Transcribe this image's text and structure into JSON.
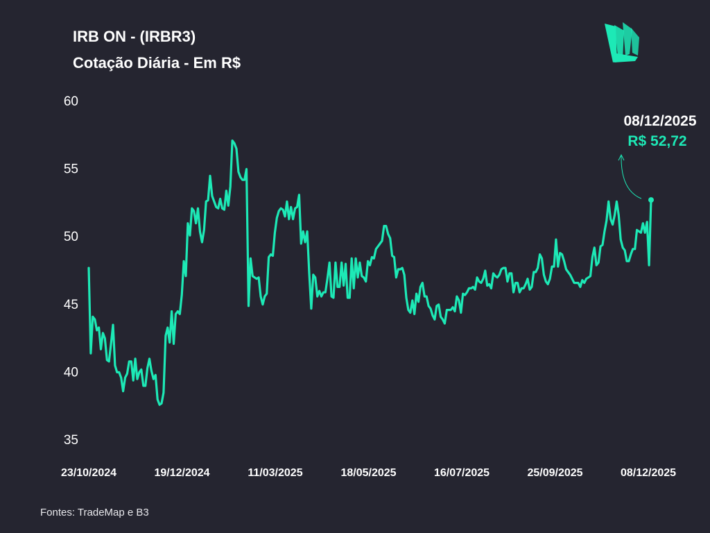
{
  "header": {
    "title_line1": "IRB ON - (IRBR3)",
    "title_line2": "Cotação Diária - Em R$"
  },
  "logo": {
    "icon": "leaf-logo-icon",
    "color": "#1de9b6"
  },
  "annotation": {
    "date": "08/12/2025",
    "price": "R$ 52,72"
  },
  "footer": {
    "source": "Fontes: TradeMap e B3"
  },
  "colors": {
    "background": "#252530",
    "line": "#1de9b6",
    "text": "#ffffff"
  },
  "chart_data": {
    "type": "line",
    "title": "Cotação Diária - Em R$",
    "xlabel": "",
    "ylabel": "",
    "ylim": [
      35,
      60
    ],
    "yticks": [
      "35",
      "40",
      "45",
      "50",
      "55",
      "60"
    ],
    "xticks": [
      "23/10/2024",
      "19/12/2024",
      "11/03/2025",
      "18/05/2025",
      "16/07/2025",
      "25/09/2025",
      "08/12/2025"
    ],
    "grid": false,
    "legend": "none",
    "series": [
      {
        "values": [
          47.7,
          41.4,
          44.1,
          43.9,
          43.1,
          43.3,
          41.7,
          42.9,
          42.5,
          40.9,
          40.8,
          42.1,
          43.5,
          40.5,
          40.0,
          40.0,
          39.6,
          38.6,
          39.6,
          39.9,
          40.8,
          40.8,
          39.4,
          41.0,
          39.5,
          40.0,
          40.2,
          39.0,
          39.0,
          40.3,
          41.0,
          40.1,
          39.5,
          39.8,
          38.0,
          37.6,
          37.7,
          38.5,
          42.7,
          43.3,
          42.2,
          44.5,
          42.1,
          44.3,
          44.5,
          44.3,
          45.7,
          48.2,
          47.1,
          51.0,
          50.1,
          52.1,
          51.9,
          51.0,
          52.1,
          50.4,
          49.6,
          50.5,
          52.6,
          52.7,
          54.5,
          53.0,
          52.6,
          52.2,
          52.1,
          52.8,
          52.1,
          52.0,
          53.4,
          52.3,
          53.7,
          57.1,
          56.9,
          56.5,
          54.8,
          54.4,
          54.2,
          54.2,
          55.0,
          44.9,
          48.4,
          47.1,
          47.0,
          46.9,
          47.0,
          45.6,
          45.0,
          45.6,
          45.8,
          48.5,
          48.7,
          48.6,
          50.3,
          51.4,
          51.9,
          52.1,
          52.0,
          51.5,
          52.6,
          51.3,
          52.2,
          51.3,
          52.1,
          52.2,
          53.1,
          49.5,
          50.4,
          49.6,
          50.4,
          47.3,
          44.7,
          47.2,
          47.0,
          45.6,
          46.0,
          45.6,
          45.9,
          45.9,
          46.9,
          48.1,
          45.6,
          45.5,
          48.1,
          46.3,
          46.3,
          48.1,
          46.4,
          48.0,
          45.5,
          45.5,
          48.4,
          46.2,
          48.4,
          47.0,
          48.1,
          47.1,
          47.0,
          46.7,
          48.2,
          47.9,
          48.5,
          48.4,
          49.1,
          49.3,
          49.5,
          49.7,
          50.8,
          50.8,
          50.2,
          49.9,
          48.6,
          48.5,
          47.0,
          47.6,
          47.6,
          47.7,
          47.2,
          45.5,
          44.6,
          44.4,
          45.3,
          44.3,
          45.8,
          45.2,
          46.3,
          46.6,
          45.6,
          45.6,
          44.9,
          44.7,
          44.2,
          43.9,
          44.9,
          45.0,
          44.1,
          43.9,
          43.6,
          44.6,
          44.6,
          44.6,
          44.8,
          44.5,
          45.6,
          45.3,
          44.4,
          45.8,
          45.7,
          45.9,
          46.2,
          46.2,
          46.3,
          46.1,
          47.0,
          46.7,
          46.6,
          46.9,
          47.5,
          46.4,
          46.5,
          46.2,
          47.3,
          47.1,
          47.0,
          47.2,
          47.6,
          47.7,
          47.7,
          46.7,
          47.3,
          47.3,
          45.9,
          46.6,
          46.6,
          45.9,
          46.2,
          46.2,
          46.5,
          46.9,
          46.1,
          46.3,
          47.4,
          47.4,
          47.7,
          48.7,
          48.4,
          47.2,
          46.7,
          46.5,
          46.9,
          47.8,
          47.8,
          49.8,
          47.8,
          48.8,
          48.7,
          48.2,
          47.6,
          47.4,
          47.2,
          46.9,
          46.6,
          46.6,
          46.6,
          46.3,
          46.8,
          46.6,
          46.9,
          47.0,
          47.1,
          48.5,
          49.2,
          47.9,
          48.1,
          49.3,
          49.4,
          50.4,
          51.2,
          52.6,
          51.3,
          50.9,
          51.6,
          52.6,
          51.6,
          49.8,
          49.2,
          49.0,
          48.2,
          48.2,
          48.7,
          49.1,
          49.1,
          50.5,
          50.4,
          50.3,
          51.0,
          50.3,
          51.1,
          47.9,
          52.72
        ]
      }
    ]
  }
}
